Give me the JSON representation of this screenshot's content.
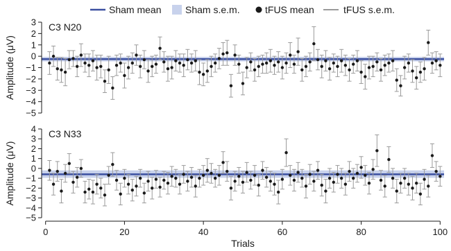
{
  "legend": {
    "sham_mean": "Sham mean",
    "sham_sem": "Sham s.e.m.",
    "tfus_mean": "tFUS mean",
    "tfus_sem": "tFUS s.e.m."
  },
  "colors": {
    "sham_line": "#3b4fa0",
    "sham_band": "#c8d2ec",
    "tfus_point": "#1a1a1a",
    "tfus_err": "#9a9a9a"
  },
  "chart_data": [
    {
      "type": "scatter",
      "panel_label": "C3 N20",
      "ylabel": "Amplitude (μV)",
      "xlabel": "",
      "xlim": [
        -1,
        101
      ],
      "ylim": [
        -5,
        3
      ],
      "yticks": [
        3,
        2,
        1,
        0,
        -1,
        -2,
        -3,
        -4,
        -5
      ],
      "xticks": [],
      "sham_mean": -0.25,
      "sham_sem": [
        -0.45,
        -0.05
      ],
      "trials": [
        1,
        2,
        3,
        4,
        5,
        6,
        7,
        8,
        9,
        10,
        11,
        12,
        13,
        14,
        15,
        16,
        17,
        18,
        19,
        20,
        21,
        22,
        23,
        24,
        25,
        26,
        27,
        28,
        29,
        30,
        31,
        32,
        33,
        34,
        35,
        36,
        37,
        38,
        39,
        40,
        41,
        42,
        43,
        44,
        45,
        46,
        47,
        48,
        49,
        50,
        51,
        52,
        53,
        54,
        55,
        56,
        57,
        58,
        59,
        60,
        61,
        62,
        63,
        64,
        65,
        66,
        67,
        68,
        69,
        70,
        71,
        72,
        73,
        74,
        75,
        76,
        77,
        78,
        79,
        80,
        81,
        82,
        83,
        84,
        85,
        86,
        87,
        88,
        89,
        90,
        91,
        92,
        93,
        94,
        95,
        96,
        97,
        98,
        99,
        100
      ],
      "means": [
        -0.6,
        0.0,
        -1.1,
        -1.2,
        -1.4,
        -0.3,
        -0.2,
        -0.9,
        0.1,
        -0.6,
        -0.8,
        -0.4,
        -1.0,
        -0.9,
        -2.2,
        -1.2,
        -2.8,
        -0.8,
        -0.6,
        -1.7,
        -1.0,
        -0.6,
        0.1,
        -0.9,
        -0.3,
        -1.3,
        -0.9,
        -0.7,
        0.7,
        -0.5,
        -1.1,
        -1.0,
        -0.4,
        -0.6,
        -0.8,
        -0.3,
        -0.6,
        -0.4,
        -1.4,
        -1.6,
        -1.3,
        -0.9,
        -0.6,
        -0.2,
        0.2,
        0.3,
        -2.6,
        0.1,
        -0.7,
        -2.4,
        -1.0,
        -0.5,
        -1.2,
        -0.9,
        -0.7,
        -0.6,
        -0.4,
        -0.8,
        -0.5,
        -1.0,
        -0.6,
        0.1,
        -0.7,
        0.4,
        -1.2,
        -0.9,
        -0.5,
        1.1,
        -0.3,
        -0.9,
        -0.4,
        -1.1,
        -0.6,
        -0.9,
        -0.4,
        -0.8,
        -1.2,
        -0.7,
        -0.4,
        -1.4,
        -1.8,
        -1.0,
        -0.9,
        -0.5,
        -1.2,
        -0.8,
        -0.6,
        -0.4,
        -2.1,
        -2.6,
        -1.0,
        -0.6,
        -1.3,
        -1.9,
        -1.4,
        -1.1,
        1.2,
        -0.6,
        -0.4,
        -0.8
      ],
      "sem": [
        1.0,
        0.9,
        1.0,
        1.1,
        1.2,
        0.8,
        0.7,
        0.9,
        1.0,
        0.8,
        1.0,
        0.9,
        1.1,
        1.0,
        1.0,
        1.2,
        1.0,
        0.9,
        0.8,
        1.1,
        1.0,
        0.9,
        0.9,
        1.0,
        0.8,
        1.0,
        0.9,
        0.8,
        1.0,
        0.9,
        1.1,
        1.0,
        0.9,
        0.8,
        1.0,
        0.9,
        0.8,
        0.9,
        1.1,
        1.0,
        1.0,
        0.9,
        0.8,
        0.9,
        1.0,
        1.1,
        1.0,
        0.9,
        0.8,
        1.0,
        0.9,
        0.8,
        1.0,
        0.9,
        0.8,
        0.9,
        1.0,
        0.8,
        0.9,
        1.0,
        0.9,
        1.1,
        0.8,
        1.2,
        1.0,
        0.9,
        0.8,
        1.5,
        0.9,
        1.0,
        0.9,
        1.0,
        0.8,
        0.9,
        1.0,
        0.9,
        1.0,
        0.8,
        0.9,
        1.0,
        1.1,
        1.0,
        0.9,
        0.8,
        1.0,
        0.9,
        0.8,
        0.9,
        1.0,
        0.9,
        1.0,
        0.8,
        1.0,
        1.0,
        0.9,
        1.0,
        1.1,
        0.9,
        0.8,
        1.0
      ]
    },
    {
      "type": "scatter",
      "panel_label": "C3 N33",
      "ylabel": "Amplitude (μV)",
      "xlabel": "Trials",
      "xlim": [
        -1,
        101
      ],
      "ylim": [
        -5,
        4
      ],
      "yticks": [
        4,
        3,
        2,
        1,
        0,
        -1,
        -2,
        -3,
        -4,
        -5
      ],
      "xticks": [
        0,
        20,
        40,
        60,
        80,
        100
      ],
      "sham_mean": -0.6,
      "sham_sem": [
        -0.95,
        -0.2
      ],
      "trials": [
        1,
        2,
        3,
        4,
        5,
        6,
        7,
        8,
        9,
        10,
        11,
        12,
        13,
        14,
        15,
        16,
        17,
        18,
        19,
        20,
        21,
        22,
        23,
        24,
        25,
        26,
        27,
        28,
        29,
        30,
        31,
        32,
        33,
        34,
        35,
        36,
        37,
        38,
        39,
        40,
        41,
        42,
        43,
        44,
        45,
        46,
        47,
        48,
        49,
        50,
        51,
        52,
        53,
        54,
        55,
        56,
        57,
        58,
        59,
        60,
        61,
        62,
        63,
        64,
        65,
        66,
        67,
        68,
        69,
        70,
        71,
        72,
        73,
        74,
        75,
        76,
        77,
        78,
        79,
        80,
        81,
        82,
        83,
        84,
        85,
        86,
        87,
        88,
        89,
        90,
        91,
        92,
        93,
        94,
        95,
        96,
        97,
        98,
        99,
        100
      ],
      "means": [
        -0.2,
        -1.6,
        -0.3,
        -2.3,
        -0.5,
        0.5,
        -1.4,
        -0.9,
        0.0,
        -2.4,
        -2.1,
        -2.4,
        -1.6,
        -2.0,
        -2.7,
        -0.7,
        0.4,
        -1.2,
        -2.6,
        -1.0,
        -1.6,
        -2.2,
        -1.8,
        -1.0,
        -2.5,
        -1.3,
        -2.0,
        -1.1,
        -1.9,
        -1.2,
        -1.5,
        -0.8,
        -1.0,
        -1.6,
        -0.6,
        -1.3,
        -0.9,
        -1.8,
        -1.0,
        -0.7,
        -0.2,
        -0.5,
        -1.0,
        -0.7,
        0.6,
        -0.3,
        -2.0,
        -1.3,
        -0.8,
        -1.4,
        -0.4,
        -1.2,
        -0.7,
        -1.7,
        -0.2,
        -0.9,
        -1.3,
        -1.6,
        -2.4,
        -1.1,
        1.6,
        -0.7,
        -1.2,
        -0.4,
        -1.0,
        -1.8,
        -0.6,
        -1.3,
        -0.2,
        -1.7,
        -2.3,
        -1.0,
        -1.4,
        -0.6,
        -1.0,
        -1.6,
        -0.3,
        -1.0,
        -0.5,
        0.1,
        -0.7,
        -1.5,
        -0.1,
        1.8,
        -1.2,
        -1.8,
        0.9,
        -1.0,
        -2.3,
        -1.5,
        -1.0,
        -1.6,
        -2.0,
        -1.5,
        -2.6,
        -1.1,
        -1.8,
        1.3,
        -0.3,
        -0.8
      ],
      "sem": [
        1.0,
        1.1,
        1.0,
        1.2,
        0.9,
        1.0,
        1.1,
        1.0,
        0.9,
        1.1,
        1.0,
        1.2,
        1.0,
        1.0,
        1.1,
        0.9,
        1.2,
        1.0,
        1.1,
        0.9,
        1.0,
        1.1,
        1.0,
        0.9,
        1.0,
        1.0,
        1.1,
        0.9,
        1.0,
        0.9,
        1.1,
        1.0,
        0.9,
        1.0,
        0.9,
        1.0,
        1.0,
        1.1,
        0.9,
        1.0,
        1.2,
        1.0,
        0.9,
        1.0,
        1.1,
        1.0,
        1.2,
        1.0,
        0.9,
        1.1,
        1.0,
        0.9,
        1.0,
        1.1,
        0.9,
        1.0,
        1.0,
        1.1,
        1.2,
        1.0,
        1.4,
        1.0,
        1.1,
        1.0,
        0.9,
        1.2,
        1.0,
        1.0,
        0.9,
        1.1,
        1.2,
        1.0,
        1.0,
        0.9,
        1.0,
        1.1,
        1.0,
        1.0,
        0.9,
        1.1,
        1.0,
        1.1,
        1.0,
        1.6,
        1.0,
        1.1,
        1.3,
        1.0,
        1.2,
        1.0,
        1.0,
        1.1,
        1.2,
        1.0,
        1.1,
        1.0,
        1.1,
        1.2,
        1.0,
        1.0
      ]
    }
  ]
}
